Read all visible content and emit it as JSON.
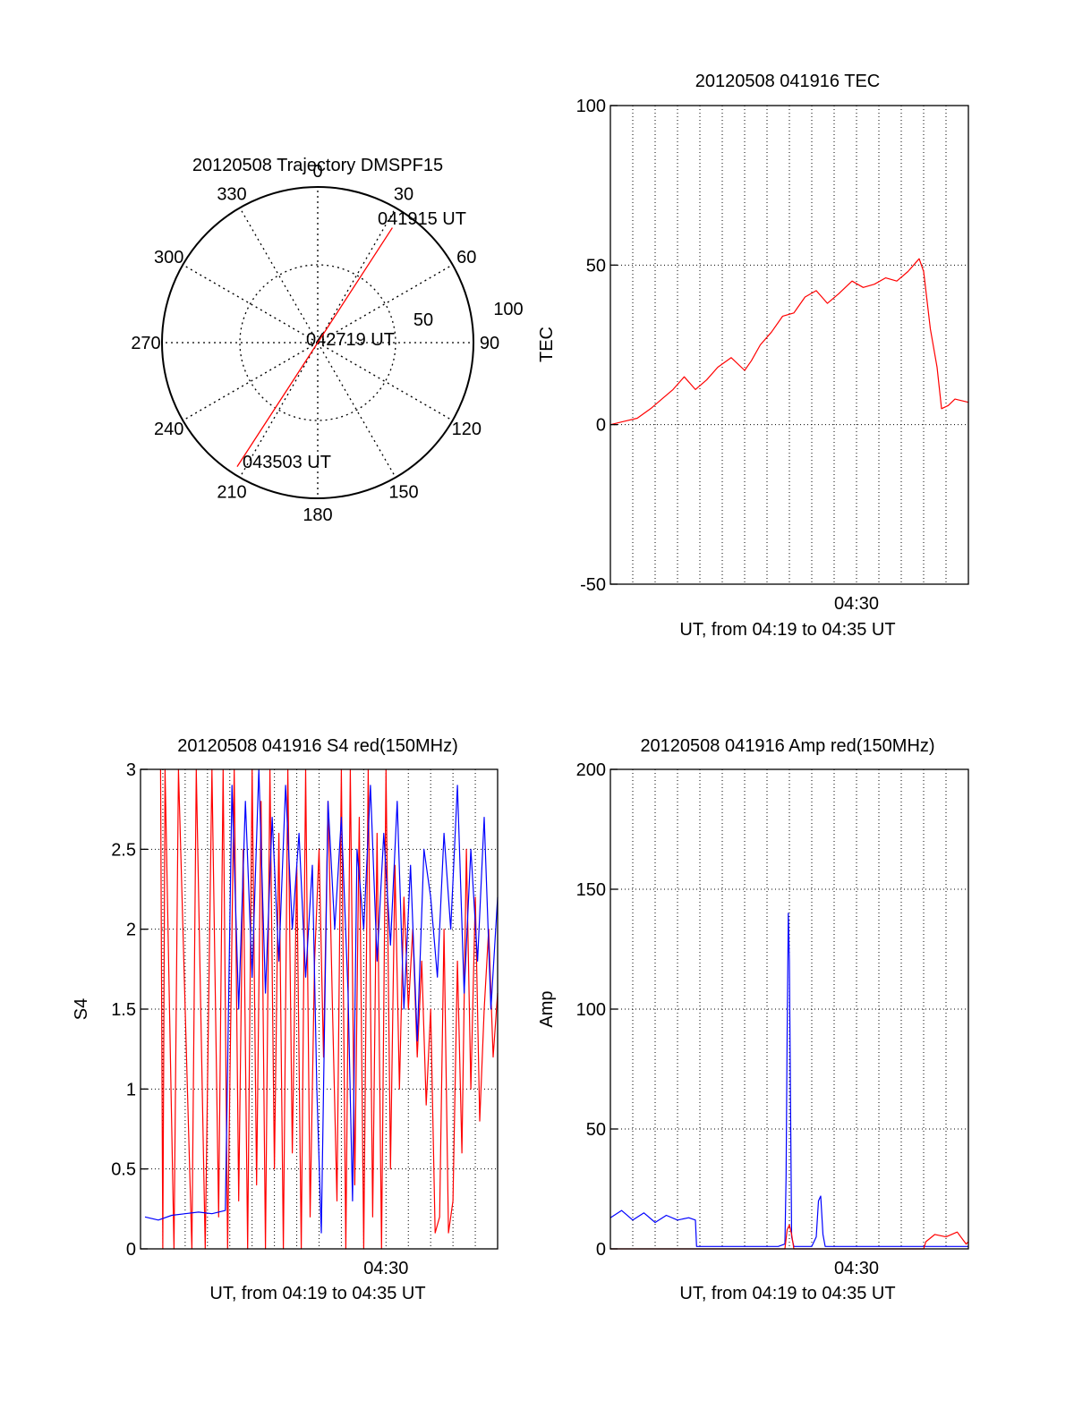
{
  "colors": {
    "red": "#ff0000",
    "blue": "#0000ff",
    "axis": "#000000",
    "grid": "#000000"
  },
  "chart_data": [
    {
      "type": "polar",
      "title": "20120508 Trajectory DMSPF15",
      "azimuth_labels": [
        "0",
        "30",
        "60",
        "90",
        "120",
        "150",
        "180",
        "210",
        "240",
        "270",
        "300",
        "330"
      ],
      "azimuth_values": [
        0,
        30,
        60,
        90,
        120,
        150,
        180,
        210,
        240,
        270,
        300,
        330
      ],
      "radius_labels": [
        "50",
        "100"
      ],
      "radius_max": 100,
      "annotations": [
        "041915 UT",
        "042719 UT",
        "043503 UT"
      ],
      "series": [
        {
          "points": [
            {
              "azimuth": 33,
              "radius": 88
            },
            {
              "azimuth": 0,
              "radius": 0
            },
            {
              "azimuth": 213,
              "radius": 95
            }
          ]
        }
      ]
    },
    {
      "type": "line",
      "title": "20120508 041916 TEC",
      "xlabel": "UT, from 04:19 to 04:35 UT",
      "ylabel": "TEC",
      "xlim": [
        0,
        16
      ],
      "ylim": [
        -50,
        100
      ],
      "xtick_label": "04:30",
      "xtick_value": 11,
      "yticks": [
        "100",
        "50",
        "0",
        "-50"
      ],
      "ytick_values": [
        100,
        50,
        0,
        -50
      ],
      "grid": true,
      "series": [
        {
          "x": [
            0,
            0.6,
            1.2,
            1.8,
            2.3,
            2.8,
            3.3,
            3.8,
            4.3,
            4.8,
            5.4,
            6,
            6.3,
            6.7,
            7.2,
            7.7,
            8.2,
            8.7,
            9.2,
            9.7,
            10.2,
            10.8,
            11.3,
            11.8,
            12.3,
            12.8,
            13.3,
            13.8,
            14,
            14.3,
            14.6,
            14.8,
            15.1,
            15.4,
            16
          ],
          "y": [
            0,
            1,
            2,
            5,
            8,
            11,
            15,
            11,
            14,
            18,
            21,
            17,
            20,
            25,
            29,
            34,
            35,
            40,
            42,
            38,
            41,
            45,
            43,
            44,
            46,
            45,
            48,
            52,
            48,
            30,
            18,
            5,
            6,
            8,
            7
          ]
        }
      ]
    },
    {
      "type": "line",
      "title": "20120508 041916 S4 red(150MHz)",
      "xlabel": "UT, from 04:19 to 04:35 UT",
      "ylabel": "S4",
      "xlim": [
        0,
        16
      ],
      "ylim": [
        0,
        3
      ],
      "xtick_label": "04:30",
      "xtick_value": 11,
      "yticks": [
        "3",
        "2.5",
        "2",
        "1.5",
        "1",
        "0.5",
        "0"
      ],
      "ytick_values": [
        3,
        2.5,
        2,
        1.5,
        1,
        0.5,
        0
      ],
      "grid": true,
      "series": [
        {
          "color": "red",
          "x": [
            0.9,
            1.0,
            1.1,
            1.5,
            1.7,
            2.3,
            2.5,
            2.9,
            3.2,
            3.5,
            3.7,
            3.9,
            4.2,
            4.4,
            4.6,
            4.8,
            5.0,
            5.2,
            5.4,
            5.6,
            5.8,
            6.0,
            6.2,
            6.4,
            6.6,
            6.8,
            7.0,
            7.2,
            7.4,
            7.6,
            7.8,
            8.0,
            8.2,
            8.4,
            8.6,
            8.8,
            9.0,
            9.2,
            9.4,
            9.6,
            9.8,
            10.0,
            10.2,
            10.4,
            10.6,
            10.8,
            11.0,
            11.2,
            11.4,
            11.6,
            11.8,
            12.0,
            12.2,
            12.4,
            12.6,
            12.8,
            13.0,
            13.2,
            13.4,
            13.6,
            13.8,
            14.0,
            14.2,
            14.4,
            14.6,
            14.8,
            15.0,
            15.2,
            15.4,
            15.6,
            15.8,
            16.0
          ],
          "y": [
            3.0,
            0.0,
            3.0,
            0.0,
            3.0,
            0.0,
            3.0,
            0.0,
            3.0,
            0.2,
            3.0,
            0.0,
            3.0,
            0.3,
            2.5,
            0.0,
            3.0,
            0.4,
            2.8,
            0.0,
            3.0,
            0.5,
            2.6,
            0.0,
            3.0,
            0.6,
            2.4,
            0.0,
            3.0,
            0.2,
            1.8,
            2.5,
            1.2,
            2.8,
            1.5,
            0.3,
            3.0,
            0.0,
            3.0,
            0.4,
            2.7,
            0.0,
            3.0,
            0.2,
            2.6,
            0.0,
            3.0,
            0.5,
            2.4,
            1.0,
            2.2,
            1.5,
            2.0,
            1.2,
            1.8,
            0.9,
            1.5,
            0.1,
            0.2,
            2.0,
            0.1,
            0.3,
            1.8,
            0.6,
            2.5,
            1.0,
            2.2,
            0.8,
            1.5,
            2.0,
            1.2,
            1.6
          ]
        },
        {
          "color": "blue",
          "x": [
            0.2,
            0.8,
            1.4,
            2.0,
            2.6,
            3.2,
            3.8,
            4.1,
            4.4,
            4.7,
            5.0,
            5.3,
            5.6,
            5.9,
            6.2,
            6.5,
            6.8,
            7.1,
            7.4,
            7.7,
            7.9,
            8.1,
            8.4,
            8.7,
            9.0,
            9.3,
            9.5,
            9.7,
            10.0,
            10.3,
            10.6,
            10.9,
            11.2,
            11.5,
            11.8,
            12.1,
            12.4,
            12.7,
            13.0,
            13.3,
            13.6,
            13.9,
            14.2,
            14.5,
            14.8,
            15.1,
            15.4,
            15.7,
            16.0
          ],
          "y": [
            0.2,
            0.18,
            0.21,
            0.22,
            0.23,
            0.22,
            0.24,
            2.9,
            1.5,
            2.8,
            1.7,
            3.0,
            1.6,
            2.7,
            1.8,
            2.9,
            2.0,
            2.6,
            1.7,
            2.4,
            1.0,
            0.1,
            2.8,
            2.0,
            2.7,
            1.6,
            0.3,
            2.5,
            2.0,
            2.9,
            1.8,
            2.6,
            1.9,
            2.8,
            1.5,
            2.4,
            1.3,
            2.5,
            2.2,
            1.7,
            2.6,
            2.0,
            2.9,
            1.6,
            2.5,
            1.8,
            2.7,
            1.5,
            2.2
          ]
        }
      ]
    },
    {
      "type": "line",
      "title": "20120508 041916 Amp red(150MHz)",
      "xlabel": "UT, from 04:19 to 04:35 UT",
      "ylabel": "Amp",
      "xlim": [
        0,
        16
      ],
      "ylim": [
        0,
        200
      ],
      "xtick_label": "04:30",
      "xtick_value": 11,
      "yticks": [
        "200",
        "150",
        "100",
        "50",
        "0"
      ],
      "ytick_values": [
        200,
        150,
        100,
        50,
        0
      ],
      "grid": true,
      "series": [
        {
          "color": "blue",
          "x": [
            0,
            0.5,
            1,
            1.5,
            2,
            2.5,
            3,
            3.5,
            3.8,
            3.85,
            4.5,
            5.5,
            6.5,
            7.5,
            7.8,
            7.85,
            7.9,
            7.95,
            8.0,
            8.05,
            8.1,
            8.2,
            8.5,
            9.0,
            9.2,
            9.3,
            9.4,
            9.5,
            9.6,
            10.5,
            11.5,
            12.5,
            13.5,
            14.5,
            15.5,
            16
          ],
          "y": [
            13,
            16,
            12,
            15,
            11,
            14,
            12,
            13,
            12,
            1,
            1,
            1,
            1,
            1,
            2,
            30,
            90,
            140,
            120,
            60,
            5,
            1,
            1,
            1,
            5,
            20,
            22,
            6,
            1,
            1,
            1,
            1,
            1,
            1,
            1,
            1
          ]
        },
        {
          "color": "red",
          "x": [
            0,
            4,
            7.8,
            7.9,
            8.0,
            8.1,
            8.2,
            14,
            14.1,
            14.5,
            15,
            15.5,
            15.9,
            16
          ],
          "y": [
            0,
            0,
            0,
            8,
            10,
            6,
            0,
            0,
            3,
            6,
            5,
            7,
            2,
            3
          ]
        }
      ]
    }
  ]
}
